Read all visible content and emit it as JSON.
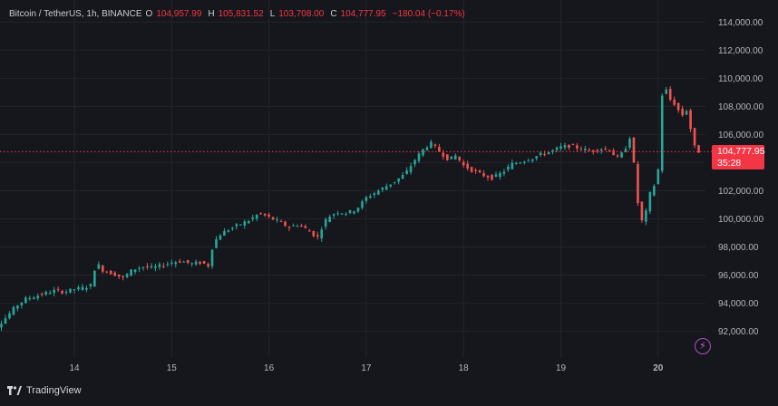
{
  "legend": {
    "symbol": "Bitcoin / TetherUS, 1h, BINANCE",
    "open_label": "O",
    "open": "104,957.99",
    "high_label": "H",
    "high": "105,831.52",
    "low_label": "L",
    "low": "103,708.00",
    "close_label": "C",
    "close": "104,777.95",
    "change": "−180.04 (−0.17%)"
  },
  "price_tag": {
    "price": "104,777.95",
    "countdown": "35:28"
  },
  "footer": {
    "brand": "TradingView"
  },
  "icons": {
    "bolt": "lightning-bolt-icon",
    "logo": "tradingview-logo-icon"
  },
  "colors": {
    "up": "#26a69a",
    "down": "#ef5350",
    "price_line": "#f23645",
    "background": "#16171c"
  },
  "chart_data": {
    "type": "candlestick",
    "symbol": "Bitcoin / TetherUS",
    "interval": "1h",
    "exchange": "BINANCE",
    "y_ticks": [
      "92,000.00",
      "94,000.00",
      "96,000.00",
      "98,000.00",
      "100,000.00",
      "102,000.00",
      "104,000.00",
      "106,000.00",
      "108,000.00",
      "110,000.00",
      "112,000.00",
      "114,000.00"
    ],
    "x_ticks": [
      "14",
      "15",
      "16",
      "17",
      "18",
      "19",
      "20"
    ],
    "last_price": 104777.95,
    "close_path": [
      [
        13.0,
        91600
      ],
      [
        13.05,
        91200
      ],
      [
        13.1,
        91800
      ],
      [
        13.15,
        91500
      ],
      [
        13.2,
        92300
      ],
      [
        13.3,
        93000
      ],
      [
        13.4,
        93800
      ],
      [
        13.5,
        94300
      ],
      [
        13.6,
        94500
      ],
      [
        13.7,
        94700
      ],
      [
        13.8,
        94900
      ],
      [
        13.9,
        94800
      ],
      [
        14.0,
        95000
      ],
      [
        14.1,
        95100
      ],
      [
        14.18,
        95300
      ],
      [
        14.22,
        96900
      ],
      [
        14.3,
        96300
      ],
      [
        14.4,
        96100
      ],
      [
        14.5,
        95800
      ],
      [
        14.6,
        96400
      ],
      [
        14.7,
        96600
      ],
      [
        14.8,
        96500
      ],
      [
        14.9,
        96700
      ],
      [
        15.0,
        96900
      ],
      [
        15.1,
        97000
      ],
      [
        15.2,
        96800
      ],
      [
        15.3,
        96900
      ],
      [
        15.4,
        96600
      ],
      [
        15.42,
        98200
      ],
      [
        15.5,
        98900
      ],
      [
        15.6,
        99300
      ],
      [
        15.7,
        99600
      ],
      [
        15.8,
        99900
      ],
      [
        15.9,
        100400
      ],
      [
        16.0,
        100100
      ],
      [
        16.1,
        99800
      ],
      [
        16.2,
        99400
      ],
      [
        16.3,
        99600
      ],
      [
        16.4,
        99200
      ],
      [
        16.45,
        98900
      ],
      [
        16.5,
        98700
      ],
      [
        16.55,
        99500
      ],
      [
        16.6,
        100100
      ],
      [
        16.7,
        100500
      ],
      [
        16.8,
        100400
      ],
      [
        16.9,
        100700
      ],
      [
        17.0,
        101500
      ],
      [
        17.1,
        101900
      ],
      [
        17.2,
        102300
      ],
      [
        17.3,
        102700
      ],
      [
        17.4,
        103200
      ],
      [
        17.5,
        104200
      ],
      [
        17.58,
        104900
      ],
      [
        17.66,
        105400
      ],
      [
        17.75,
        104800
      ],
      [
        17.85,
        104200
      ],
      [
        17.92,
        104500
      ],
      [
        18.0,
        103800
      ],
      [
        18.1,
        103400
      ],
      [
        18.2,
        103100
      ],
      [
        18.3,
        102900
      ],
      [
        18.4,
        103300
      ],
      [
        18.5,
        103900
      ],
      [
        18.6,
        104100
      ],
      [
        18.7,
        104300
      ],
      [
        18.8,
        104600
      ],
      [
        18.9,
        104800
      ],
      [
        19.0,
        105100
      ],
      [
        19.1,
        105200
      ],
      [
        19.2,
        105000
      ],
      [
        19.3,
        104800
      ],
      [
        19.4,
        105000
      ],
      [
        19.5,
        104900
      ],
      [
        19.58,
        104300
      ],
      [
        19.65,
        104800
      ],
      [
        19.72,
        106000
      ],
      [
        19.76,
        103200
      ],
      [
        19.8,
        100600
      ],
      [
        19.84,
        99700
      ],
      [
        19.88,
        100600
      ],
      [
        19.92,
        101900
      ],
      [
        19.96,
        102400
      ],
      [
        20.0,
        103500
      ],
      [
        20.04,
        108800
      ],
      [
        20.08,
        109200
      ],
      [
        20.12,
        108500
      ],
      [
        20.18,
        108100
      ],
      [
        20.24,
        107300
      ],
      [
        20.3,
        107800
      ],
      [
        20.36,
        105300
      ],
      [
        20.4,
        104800
      ],
      [
        20.42,
        104778
      ]
    ]
  }
}
